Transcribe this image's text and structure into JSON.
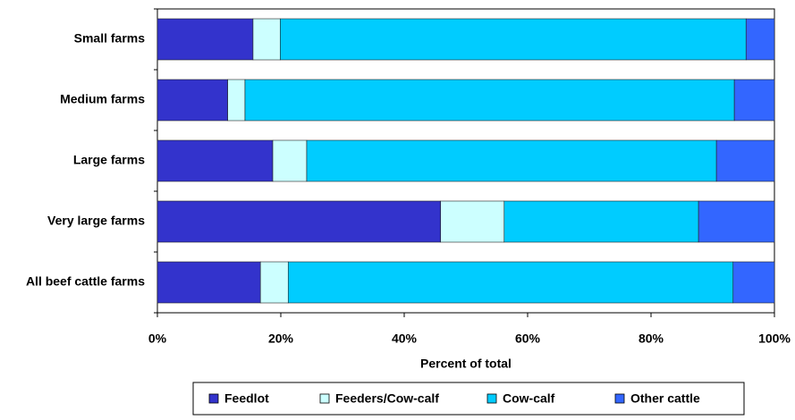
{
  "chart_data": {
    "type": "stacked_barh",
    "xlabel": "Percent of total",
    "categories": [
      "Small farms",
      "Medium farms",
      "Large farms",
      "Very large farms",
      "All beef cattle farms"
    ],
    "series": [
      {
        "name": "Feedlot",
        "color": "#3333cc",
        "values": [
          15.5,
          11.4,
          18.7,
          45.9,
          16.7
        ]
      },
      {
        "name": "Feeders/Cow-calf",
        "color": "#ccffff",
        "values": [
          4.4,
          2.8,
          5.5,
          10.3,
          4.5
        ]
      },
      {
        "name": "Cow-calf",
        "color": "#00ccff",
        "values": [
          75.5,
          79.3,
          66.4,
          31.5,
          72.1
        ]
      },
      {
        "name": "Other cattle",
        "color": "#3366ff",
        "values": [
          4.6,
          6.5,
          9.4,
          12.3,
          6.7
        ]
      }
    ],
    "xlim": [
      0,
      100
    ],
    "xticks": [
      {
        "value": 0,
        "label": "0%"
      },
      {
        "value": 20,
        "label": "20%"
      },
      {
        "value": 40,
        "label": "40%"
      },
      {
        "value": 60,
        "label": "60%"
      },
      {
        "value": 80,
        "label": "80%"
      },
      {
        "value": 100,
        "label": "100%"
      }
    ],
    "legend": "bottom"
  }
}
